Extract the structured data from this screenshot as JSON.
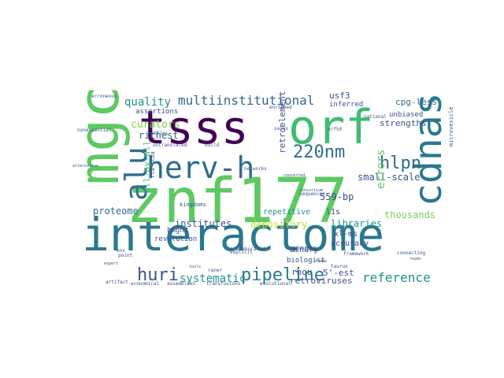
{
  "words": [
    {
      "text": "interactome",
      "color": "#2a788e"
    },
    {
      "text": "znf177",
      "color": "#5ec962"
    },
    {
      "text": "tsss",
      "color": "#440154"
    },
    {
      "text": "orf",
      "color": "#3fbc73"
    },
    {
      "text": "mgc",
      "color": "#5ec962"
    },
    {
      "text": "cdnas",
      "color": "#2a788e"
    },
    {
      "text": "herv-h",
      "color": "#2f6c8e"
    },
    {
      "text": "alu",
      "color": "#2f6c8e"
    },
    {
      "text": "huri",
      "color": "#3b528b"
    },
    {
      "text": "pipeline",
      "color": "#2a788e"
    },
    {
      "text": "220nm",
      "color": "#2f6c8e"
    },
    {
      "text": "hlpn",
      "color": "#2f6c8e"
    },
    {
      "text": "multiinstitutional",
      "color": "#31688e"
    },
    {
      "text": "reference",
      "color": "#21918c"
    },
    {
      "text": "systematic",
      "color": "#21918c"
    },
    {
      "text": "quality",
      "color": "#21918c"
    },
    {
      "text": "curators",
      "color": "#7ad151"
    },
    {
      "text": "richest",
      "color": "#31688e"
    },
    {
      "text": "proteome",
      "color": "#2f6c8e"
    },
    {
      "text": "institutes",
      "color": "#3b528b"
    },
    {
      "text": "depository",
      "color": "#b5de2b"
    },
    {
      "text": "libraries",
      "color": "#21918c"
    },
    {
      "text": "small-scale",
      "color": "#3b528b"
    },
    {
      "text": "usf3",
      "color": "#3b528b"
    },
    {
      "text": "cpg-less",
      "color": "#2f6c8e"
    },
    {
      "text": "strengths",
      "color": "#3b528b"
    },
    {
      "text": "errors",
      "color": "#5ec962"
    },
    {
      "text": "thousands",
      "color": "#7ad151"
    },
    {
      "text": "559-bp",
      "color": "#3b528b"
    },
    {
      "text": "l1s",
      "color": "#3b528b"
    },
    {
      "text": "xl-ms",
      "color": "#3b528b"
    },
    {
      "text": "5'-est",
      "color": "#3b528b"
    },
    {
      "text": "retroviruses",
      "color": "#3b528b"
    },
    {
      "text": "rhou",
      "color": "#3b528b"
    },
    {
      "text": "binary",
      "color": "#3b528b"
    },
    {
      "text": "biologist",
      "color": "#3b528b"
    },
    {
      "text": "repetitive",
      "color": "#21918c"
    },
    {
      "text": "revolution",
      "color": "#3b528b"
    },
    {
      "text": "all-by-all",
      "color": "#3fbc73"
    },
    {
      "text": "retroelement",
      "color": "#3b528b"
    },
    {
      "text": "accuracy",
      "color": "#3b528b"
    },
    {
      "text": "genome",
      "color": "#3b528b"
    },
    {
      "text": "unbiased",
      "color": "#3b528b"
    },
    {
      "text": "inferred",
      "color": "#3b528b"
    },
    {
      "text": "assertions",
      "color": "#3b528b"
    },
    {
      "text": "hmgn2",
      "color": "#3b528b"
    },
    {
      "text": "kingdoms",
      "color": "#3b528b"
    },
    {
      "text": "assemblies",
      "color": "#3b528b"
    },
    {
      "text": "transfusions",
      "color": "#3b528b"
    },
    {
      "text": "evolutional",
      "color": "#3b528b"
    },
    {
      "text": "economical",
      "color": "#3b528b"
    },
    {
      "text": "elaborated",
      "color": "#3b528b"
    },
    {
      "text": "framework",
      "color": "#3b528b"
    },
    {
      "text": "connecting",
      "color": "#3b528b"
    },
    {
      "text": "taurus",
      "color": "#3b528b"
    },
    {
      "text": "national",
      "color": "#3b528b"
    },
    {
      "text": "microvesicle",
      "color": "#3b528b"
    },
    {
      "text": "enriched",
      "color": "#3b528b"
    },
    {
      "text": "explicit",
      "color": "#3b528b"
    },
    {
      "text": "networks",
      "color": "#3b528b"
    },
    {
      "text": "metrics",
      "color": "#3b528b"
    },
    {
      "text": "build",
      "color": "#3b528b"
    },
    {
      "text": "untranslated",
      "color": "#3b528b"
    },
    {
      "text": "rta-ncoa",
      "color": "#3b528b"
    },
    {
      "text": "erroneous",
      "color": "#3b528b"
    },
    {
      "text": "nonessential",
      "color": "#3b528b"
    },
    {
      "text": "alternative",
      "color": "#3b528b"
    },
    {
      "text": "artifact",
      "color": "#3b528b"
    },
    {
      "text": "point",
      "color": "#3b528b"
    },
    {
      "text": "raner",
      "color": "#3b528b"
    },
    {
      "text": "env",
      "color": "#3b528b"
    },
    {
      "text": "sequences",
      "color": "#3b528b"
    },
    {
      "text": "orf50",
      "color": "#3b528b"
    },
    {
      "text": "sales",
      "color": "#3b528b"
    },
    {
      "text": "frame",
      "color": "#3b528b"
    },
    {
      "text": "expert",
      "color": "#3b528b"
    },
    {
      "text": "concerted",
      "color": "#3b528b"
    },
    {
      "text": "consortium",
      "color": "#3b528b"
    },
    {
      "text": "reads",
      "color": "#3b528b"
    },
    {
      "text": "tools",
      "color": "#3b528b"
    }
  ]
}
